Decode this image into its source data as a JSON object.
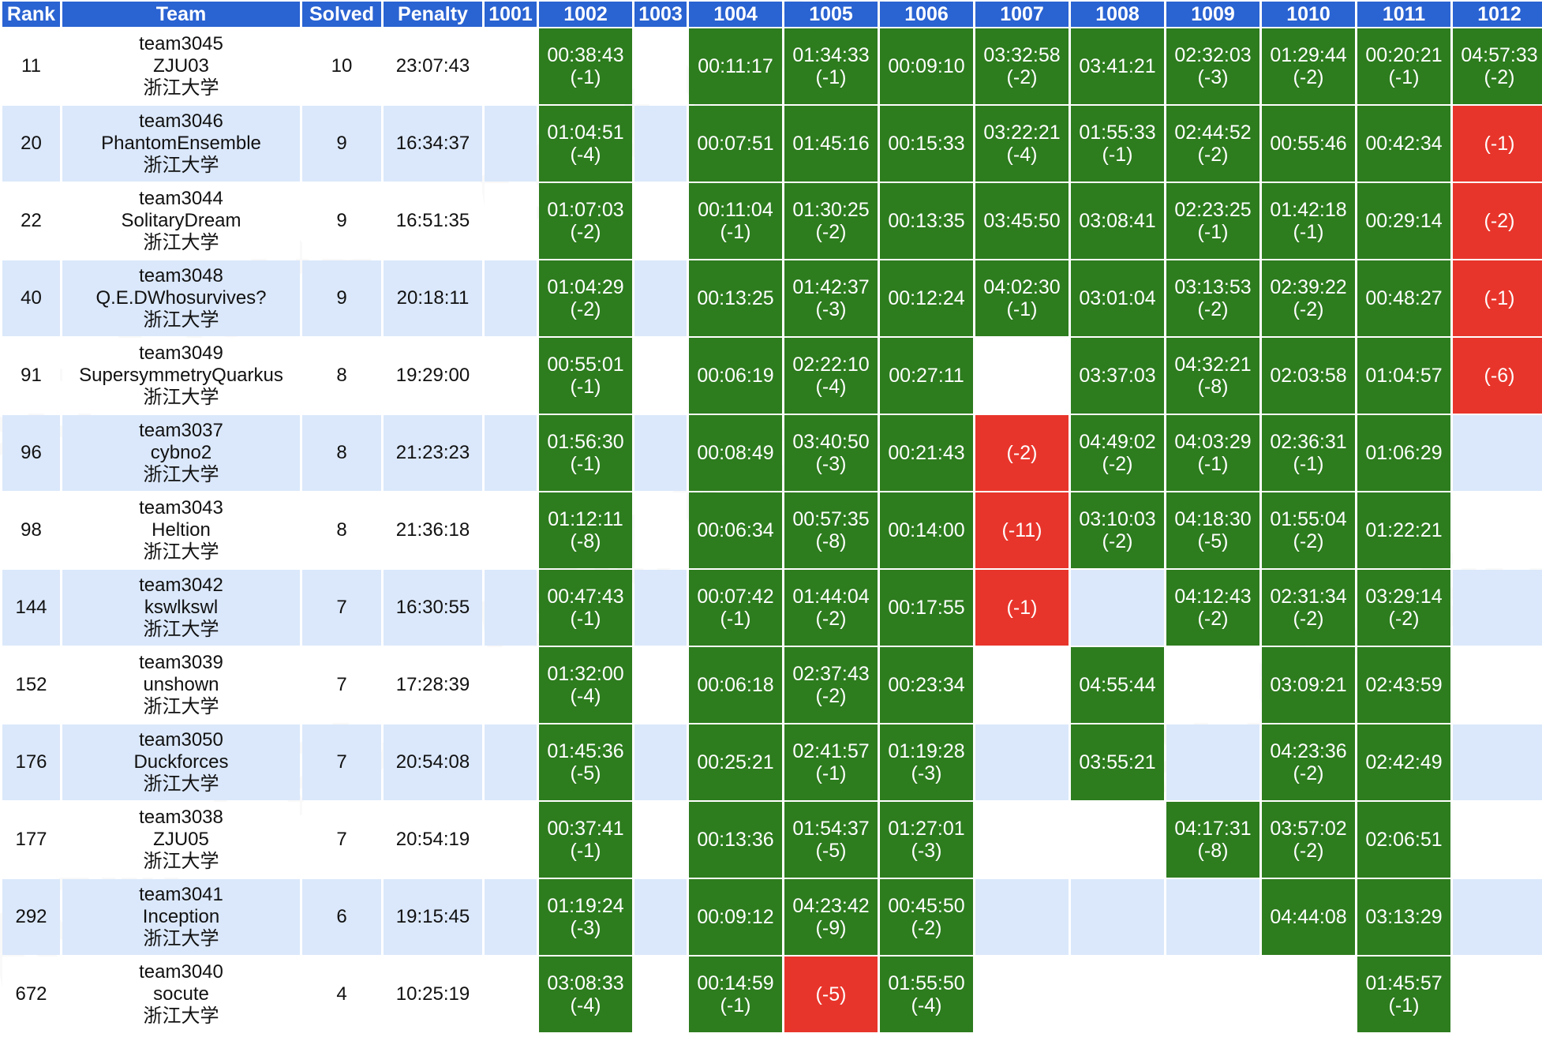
{
  "colors": {
    "header": "#2a63d2",
    "accepted": "#2d7c1e",
    "wrong": "#e8352b",
    "alt_row": "#dbe8fb"
  },
  "headers": [
    "Rank",
    "Team",
    "Solved",
    "Penalty",
    "1001",
    "1002",
    "1003",
    "1004",
    "1005",
    "1006",
    "1007",
    "1008",
    "1009",
    "1010",
    "1011",
    "1012"
  ],
  "rows": [
    {
      "rank": "11",
      "team_id": "team3045",
      "team_name": "ZJU03",
      "school": "浙江大学",
      "solved": "10",
      "penalty": "23:07:43",
      "problems": [
        {
          "s": "n"
        },
        {
          "s": "ac",
          "time": "00:38:43",
          "tries": "(-1)"
        },
        {
          "s": "n"
        },
        {
          "s": "ac",
          "time": "00:11:17"
        },
        {
          "s": "ac",
          "time": "01:34:33",
          "tries": "(-1)"
        },
        {
          "s": "ac",
          "time": "00:09:10"
        },
        {
          "s": "ac",
          "time": "03:32:58",
          "tries": "(-2)"
        },
        {
          "s": "ac",
          "time": "03:41:21"
        },
        {
          "s": "ac",
          "time": "02:32:03",
          "tries": "(-3)"
        },
        {
          "s": "ac",
          "time": "01:29:44",
          "tries": "(-2)"
        },
        {
          "s": "ac",
          "time": "00:20:21",
          "tries": "(-1)"
        },
        {
          "s": "ac",
          "time": "04:57:33",
          "tries": "(-2)"
        }
      ]
    },
    {
      "rank": "20",
      "team_id": "team3046",
      "team_name": "PhantomEnsemble",
      "school": "浙江大学",
      "solved": "9",
      "penalty": "16:34:37",
      "problems": [
        {
          "s": "n"
        },
        {
          "s": "ac",
          "time": "01:04:51",
          "tries": "(-4)"
        },
        {
          "s": "n"
        },
        {
          "s": "ac",
          "time": "00:07:51"
        },
        {
          "s": "ac",
          "time": "01:45:16"
        },
        {
          "s": "ac",
          "time": "00:15:33"
        },
        {
          "s": "ac",
          "time": "03:22:21",
          "tries": "(-4)"
        },
        {
          "s": "ac",
          "time": "01:55:33",
          "tries": "(-1)"
        },
        {
          "s": "ac",
          "time": "02:44:52",
          "tries": "(-2)"
        },
        {
          "s": "ac",
          "time": "00:55:46"
        },
        {
          "s": "ac",
          "time": "00:42:34"
        },
        {
          "s": "wa",
          "tries": "(-1)"
        }
      ]
    },
    {
      "rank": "22",
      "team_id": "team3044",
      "team_name": "SolitaryDream",
      "school": "浙江大学",
      "solved": "9",
      "penalty": "16:51:35",
      "problems": [
        {
          "s": "n"
        },
        {
          "s": "ac",
          "time": "01:07:03",
          "tries": "(-2)"
        },
        {
          "s": "n"
        },
        {
          "s": "ac",
          "time": "00:11:04",
          "tries": "(-1)"
        },
        {
          "s": "ac",
          "time": "01:30:25",
          "tries": "(-2)"
        },
        {
          "s": "ac",
          "time": "00:13:35"
        },
        {
          "s": "ac",
          "time": "03:45:50"
        },
        {
          "s": "ac",
          "time": "03:08:41"
        },
        {
          "s": "ac",
          "time": "02:23:25",
          "tries": "(-1)"
        },
        {
          "s": "ac",
          "time": "01:42:18",
          "tries": "(-1)"
        },
        {
          "s": "ac",
          "time": "00:29:14"
        },
        {
          "s": "wa",
          "tries": "(-2)"
        }
      ]
    },
    {
      "rank": "40",
      "team_id": "team3048",
      "team_name": "Q.E.DWhosurvives?",
      "school": "浙江大学",
      "solved": "9",
      "penalty": "20:18:11",
      "problems": [
        {
          "s": "n"
        },
        {
          "s": "ac",
          "time": "01:04:29",
          "tries": "(-2)"
        },
        {
          "s": "n"
        },
        {
          "s": "ac",
          "time": "00:13:25"
        },
        {
          "s": "ac",
          "time": "01:42:37",
          "tries": "(-3)"
        },
        {
          "s": "ac",
          "time": "00:12:24"
        },
        {
          "s": "ac",
          "time": "04:02:30",
          "tries": "(-1)"
        },
        {
          "s": "ac",
          "time": "03:01:04"
        },
        {
          "s": "ac",
          "time": "03:13:53",
          "tries": "(-2)"
        },
        {
          "s": "ac",
          "time": "02:39:22",
          "tries": "(-2)"
        },
        {
          "s": "ac",
          "time": "00:48:27"
        },
        {
          "s": "wa",
          "tries": "(-1)"
        }
      ]
    },
    {
      "rank": "91",
      "team_id": "team3049",
      "team_name": "SupersymmetryQuarkus",
      "school": "浙江大学",
      "solved": "8",
      "penalty": "19:29:00",
      "problems": [
        {
          "s": "n"
        },
        {
          "s": "ac",
          "time": "00:55:01",
          "tries": "(-1)"
        },
        {
          "s": "n"
        },
        {
          "s": "ac",
          "time": "00:06:19"
        },
        {
          "s": "ac",
          "time": "02:22:10",
          "tries": "(-4)"
        },
        {
          "s": "ac",
          "time": "00:27:11"
        },
        {
          "s": "n"
        },
        {
          "s": "ac",
          "time": "03:37:03"
        },
        {
          "s": "ac",
          "time": "04:32:21",
          "tries": "(-8)"
        },
        {
          "s": "ac",
          "time": "02:03:58"
        },
        {
          "s": "ac",
          "time": "01:04:57"
        },
        {
          "s": "wa",
          "tries": "(-6)"
        }
      ]
    },
    {
      "rank": "96",
      "team_id": "team3037",
      "team_name": "cybno2",
      "school": "浙江大学",
      "solved": "8",
      "penalty": "21:23:23",
      "problems": [
        {
          "s": "n"
        },
        {
          "s": "ac",
          "time": "01:56:30",
          "tries": "(-1)"
        },
        {
          "s": "n"
        },
        {
          "s": "ac",
          "time": "00:08:49"
        },
        {
          "s": "ac",
          "time": "03:40:50",
          "tries": "(-3)"
        },
        {
          "s": "ac",
          "time": "00:21:43"
        },
        {
          "s": "wa",
          "tries": "(-2)"
        },
        {
          "s": "ac",
          "time": "04:49:02",
          "tries": "(-2)"
        },
        {
          "s": "ac",
          "time": "04:03:29",
          "tries": "(-1)"
        },
        {
          "s": "ac",
          "time": "02:36:31",
          "tries": "(-1)"
        },
        {
          "s": "ac",
          "time": "01:06:29"
        },
        {
          "s": "n"
        }
      ]
    },
    {
      "rank": "98",
      "team_id": "team3043",
      "team_name": "Heltion",
      "school": "浙江大学",
      "solved": "8",
      "penalty": "21:36:18",
      "problems": [
        {
          "s": "n"
        },
        {
          "s": "ac",
          "time": "01:12:11",
          "tries": "(-8)"
        },
        {
          "s": "n"
        },
        {
          "s": "ac",
          "time": "00:06:34"
        },
        {
          "s": "ac",
          "time": "00:57:35",
          "tries": "(-8)"
        },
        {
          "s": "ac",
          "time": "00:14:00"
        },
        {
          "s": "wa",
          "tries": "(-11)"
        },
        {
          "s": "ac",
          "time": "03:10:03",
          "tries": "(-2)"
        },
        {
          "s": "ac",
          "time": "04:18:30",
          "tries": "(-5)"
        },
        {
          "s": "ac",
          "time": "01:55:04",
          "tries": "(-2)"
        },
        {
          "s": "ac",
          "time": "01:22:21"
        },
        {
          "s": "n"
        }
      ]
    },
    {
      "rank": "144",
      "team_id": "team3042",
      "team_name": "kswlkswl",
      "school": "浙江大学",
      "solved": "7",
      "penalty": "16:30:55",
      "problems": [
        {
          "s": "n"
        },
        {
          "s": "ac",
          "time": "00:47:43",
          "tries": "(-1)"
        },
        {
          "s": "n"
        },
        {
          "s": "ac",
          "time": "00:07:42",
          "tries": "(-1)"
        },
        {
          "s": "ac",
          "time": "01:44:04",
          "tries": "(-2)"
        },
        {
          "s": "ac",
          "time": "00:17:55"
        },
        {
          "s": "wa",
          "tries": "(-1)"
        },
        {
          "s": "n"
        },
        {
          "s": "ac",
          "time": "04:12:43",
          "tries": "(-2)"
        },
        {
          "s": "ac",
          "time": "02:31:34",
          "tries": "(-2)"
        },
        {
          "s": "ac",
          "time": "03:29:14",
          "tries": "(-2)"
        },
        {
          "s": "n"
        }
      ]
    },
    {
      "rank": "152",
      "team_id": "team3039",
      "team_name": "unshown",
      "school": "浙江大学",
      "solved": "7",
      "penalty": "17:28:39",
      "problems": [
        {
          "s": "n"
        },
        {
          "s": "ac",
          "time": "01:32:00",
          "tries": "(-4)"
        },
        {
          "s": "n"
        },
        {
          "s": "ac",
          "time": "00:06:18"
        },
        {
          "s": "ac",
          "time": "02:37:43",
          "tries": "(-2)"
        },
        {
          "s": "ac",
          "time": "00:23:34"
        },
        {
          "s": "n"
        },
        {
          "s": "ac",
          "time": "04:55:44"
        },
        {
          "s": "n"
        },
        {
          "s": "ac",
          "time": "03:09:21"
        },
        {
          "s": "ac",
          "time": "02:43:59"
        },
        {
          "s": "n"
        }
      ]
    },
    {
      "rank": "176",
      "team_id": "team3050",
      "team_name": "Duckforces",
      "school": "浙江大学",
      "solved": "7",
      "penalty": "20:54:08",
      "problems": [
        {
          "s": "n"
        },
        {
          "s": "ac",
          "time": "01:45:36",
          "tries": "(-5)"
        },
        {
          "s": "n"
        },
        {
          "s": "ac",
          "time": "00:25:21"
        },
        {
          "s": "ac",
          "time": "02:41:57",
          "tries": "(-1)"
        },
        {
          "s": "ac",
          "time": "01:19:28",
          "tries": "(-3)"
        },
        {
          "s": "n"
        },
        {
          "s": "ac",
          "time": "03:55:21"
        },
        {
          "s": "n"
        },
        {
          "s": "ac",
          "time": "04:23:36",
          "tries": "(-2)"
        },
        {
          "s": "ac",
          "time": "02:42:49"
        },
        {
          "s": "n"
        }
      ]
    },
    {
      "rank": "177",
      "team_id": "team3038",
      "team_name": "ZJU05",
      "school": "浙江大学",
      "solved": "7",
      "penalty": "20:54:19",
      "problems": [
        {
          "s": "n"
        },
        {
          "s": "ac",
          "time": "00:37:41",
          "tries": "(-1)"
        },
        {
          "s": "n"
        },
        {
          "s": "ac",
          "time": "00:13:36"
        },
        {
          "s": "ac",
          "time": "01:54:37",
          "tries": "(-5)"
        },
        {
          "s": "ac",
          "time": "01:27:01",
          "tries": "(-3)"
        },
        {
          "s": "n"
        },
        {
          "s": "n"
        },
        {
          "s": "ac",
          "time": "04:17:31",
          "tries": "(-8)"
        },
        {
          "s": "ac",
          "time": "03:57:02",
          "tries": "(-2)"
        },
        {
          "s": "ac",
          "time": "02:06:51"
        },
        {
          "s": "n"
        }
      ]
    },
    {
      "rank": "292",
      "team_id": "team3041",
      "team_name": "Inception",
      "school": "浙江大学",
      "solved": "6",
      "penalty": "19:15:45",
      "problems": [
        {
          "s": "n"
        },
        {
          "s": "ac",
          "time": "01:19:24",
          "tries": "(-3)"
        },
        {
          "s": "n"
        },
        {
          "s": "ac",
          "time": "00:09:12"
        },
        {
          "s": "ac",
          "time": "04:23:42",
          "tries": "(-9)"
        },
        {
          "s": "ac",
          "time": "00:45:50",
          "tries": "(-2)"
        },
        {
          "s": "n"
        },
        {
          "s": "n"
        },
        {
          "s": "n"
        },
        {
          "s": "ac",
          "time": "04:44:08"
        },
        {
          "s": "ac",
          "time": "03:13:29"
        },
        {
          "s": "n"
        }
      ]
    },
    {
      "rank": "672",
      "team_id": "team3040",
      "team_name": "socute",
      "school": "浙江大学",
      "solved": "4",
      "penalty": "10:25:19",
      "problems": [
        {
          "s": "n"
        },
        {
          "s": "ac",
          "time": "03:08:33",
          "tries": "(-4)"
        },
        {
          "s": "n"
        },
        {
          "s": "ac",
          "time": "00:14:59",
          "tries": "(-1)"
        },
        {
          "s": "wa",
          "tries": "(-5)"
        },
        {
          "s": "ac",
          "time": "01:55:50",
          "tries": "(-4)"
        },
        {
          "s": "n"
        },
        {
          "s": "n"
        },
        {
          "s": "n"
        },
        {
          "s": "n"
        },
        {
          "s": "ac",
          "time": "01:45:57",
          "tries": "(-1)"
        },
        {
          "s": "n"
        }
      ]
    }
  ]
}
